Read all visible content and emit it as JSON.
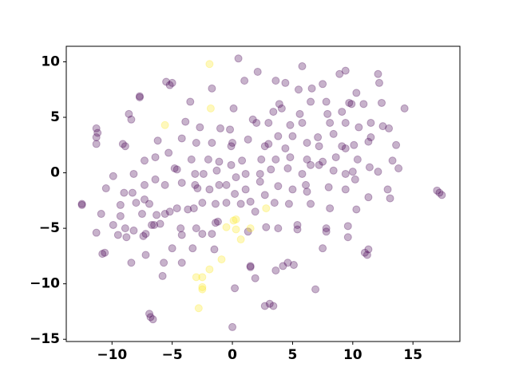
{
  "chart_data": {
    "type": "scatter",
    "xlim": [
      -13.8,
      18.9
    ],
    "ylim": [
      -15.2,
      11.4
    ],
    "xticks": [
      {
        "value": -10,
        "label": "−10"
      },
      {
        "value": -5,
        "label": "−5"
      },
      0,
      5,
      10,
      15
    ],
    "yticks": [
      {
        "value": -15,
        "label": "−15"
      },
      {
        "value": -10,
        "label": "−10"
      },
      {
        "value": -5,
        "label": "−5"
      },
      0,
      5,
      10
    ],
    "grid": false,
    "series": [
      {
        "color": "#440154",
        "x": [
          0.5,
          5.8,
          2.1,
          -1.7,
          1,
          3.6,
          4.4,
          5.5,
          6.6,
          7.5,
          8.9,
          9.4,
          12.1,
          12.2,
          -5.5,
          -5,
          -5.2,
          -7.7,
          -7.7,
          -3.5,
          0.1,
          3.9,
          6.5,
          7.8,
          9.7,
          9.9,
          10.9,
          10.3,
          12.4,
          14.3,
          -11.3,
          -11.2,
          -11.3,
          -11.3,
          -8.6,
          -8.4,
          -3.9,
          -2.7,
          -1,
          -0.2,
          1.7,
          2,
          3,
          3.4,
          4.1,
          5.6,
          4.8,
          5.8,
          7.9,
          8.1,
          9.1,
          9.4,
          10.5,
          11.5,
          12.5,
          13,
          -9.1,
          -8.9,
          -6.2,
          -4.2,
          -3,
          -1.7,
          0,
          -0.1,
          1.3,
          2.7,
          3,
          3.8,
          5,
          4.4,
          6.2,
          7.1,
          7.2,
          8.4,
          9.1,
          9.4,
          10.1,
          11.3,
          11.5,
          13.6,
          -7.3,
          -6.4,
          -5.3,
          -3.4,
          -2,
          -1.1,
          -0.1,
          0.8,
          2.4,
          3.6,
          4.8,
          6.2,
          7.5,
          8.6,
          10.4,
          13.3,
          13.8,
          -9.9,
          -8.2,
          -4.8,
          -4.6,
          -3.1,
          -2.4,
          -1.3,
          0.3,
          1.1,
          2.3,
          3.2,
          4.6,
          5.8,
          6.5,
          7.2,
          8.4,
          9.4,
          10,
          11.4,
          12.1,
          -10.5,
          -9,
          -8.3,
          -7.3,
          -6.4,
          -5.6,
          -4.2,
          -3.1,
          -2.9,
          -1.9,
          -1.1,
          -0.5,
          0.2,
          1.1,
          2.3,
          2.7,
          3.8,
          5,
          6.1,
          6.2,
          8,
          9.4,
          10.2,
          11.3,
          12.9,
          13.1,
          -12.5,
          -12.5,
          17,
          17.2,
          17.4,
          -10.9,
          -9.3,
          -8,
          -7.5,
          -7.3,
          -6.9,
          -6.3,
          -5.6,
          -5.2,
          -4.6,
          -3.7,
          -3.2,
          -2.5,
          -1.4,
          -0.5,
          0.7,
          1.5,
          1.9,
          3.5,
          4.7,
          6.5,
          8.1,
          10.3,
          -9.3,
          -11.3,
          -10.6,
          -10.8,
          -9.9,
          -9.5,
          -8.9,
          -8.2,
          -8.8,
          -7.4,
          -7.2,
          -6.7,
          -6.5,
          -6,
          -5,
          -4.3,
          -4.2,
          -3,
          -2.5,
          -1.7,
          -1.4,
          -1.2,
          1.3,
          2.8,
          3.8,
          5.4,
          5.4,
          7.8,
          7.8,
          9.6,
          9.6,
          -8.4,
          -7.2,
          -5.7,
          -5.8,
          -4.2,
          -3.3,
          -1.5,
          1.5,
          1.5,
          3.6,
          4.2,
          5.1,
          4.6,
          7.5,
          11.2,
          11,
          11.3,
          0.2,
          6.9,
          1.9,
          2.7,
          3.4,
          3.1,
          -6.9,
          -6.8,
          -6.6,
          0
        ],
        "y": [
          10.3,
          9.6,
          9.1,
          7.6,
          8.3,
          8.3,
          8.1,
          7.5,
          7.6,
          8,
          8.9,
          9.2,
          8.9,
          8.1,
          8.2,
          8.1,
          7.9,
          6.9,
          6.8,
          6.4,
          5.8,
          6.2,
          6.4,
          6.4,
          6.3,
          6.2,
          6.2,
          7.2,
          6.3,
          5.8,
          4,
          3.6,
          3.2,
          2.6,
          5.3,
          4.8,
          4.6,
          4.1,
          4,
          3.9,
          4.8,
          4.5,
          4.5,
          5.5,
          5.8,
          5.3,
          4.3,
          4.5,
          5.3,
          4.5,
          5.5,
          4.5,
          4.1,
          4.5,
          4.2,
          4,
          2.6,
          2.4,
          2.9,
          3.1,
          2.7,
          2.7,
          2.7,
          2.4,
          3,
          2.4,
          2.6,
          3.3,
          3.3,
          2.2,
          2.7,
          3.2,
          2.4,
          3.5,
          2.4,
          2.2,
          2.5,
          2.8,
          3.2,
          2.5,
          1.1,
          1.4,
          1.8,
          1.2,
          1.2,
          1,
          0.7,
          1.1,
          1.2,
          1.2,
          1.4,
          1.2,
          1,
          1.4,
          1.2,
          1.1,
          0.4,
          -0.3,
          -0.1,
          0.4,
          0.3,
          -0.1,
          -0.1,
          0.2,
          -0.4,
          -0.1,
          -0.1,
          0.3,
          0.4,
          -0.1,
          0.7,
          0.7,
          0.2,
          -0.1,
          0.1,
          0.5,
          0.1,
          -1.4,
          -1.8,
          -1.8,
          -1.1,
          -0.6,
          -1.1,
          -0.9,
          -1.1,
          -1.4,
          -1.5,
          -1.1,
          -1.1,
          -1.9,
          -1.5,
          -0.8,
          -2,
          -1.2,
          -1.5,
          -1.1,
          -1.7,
          -1.3,
          -1.5,
          -0.6,
          -2.2,
          -1.5,
          -2.3,
          -2.8,
          -2.9,
          -1.6,
          -1.8,
          -2,
          -3.7,
          -2.9,
          -2.7,
          -3.7,
          -2.4,
          -2.8,
          -3.8,
          -3.7,
          -3.5,
          -3.2,
          -3.3,
          -3.2,
          -2.7,
          -2.8,
          -2.7,
          -2.8,
          -2.6,
          -3.5,
          -2.7,
          -2.8,
          -2.8,
          -3.2,
          -3.3,
          -3.9,
          -5.4,
          -7.2,
          -7.3,
          -4.7,
          -5.6,
          -5,
          -5.2,
          -5.8,
          -5.7,
          -5.5,
          -4.7,
          -4.7,
          -4.6,
          -6.8,
          -5,
          -5.6,
          -5,
          -5.5,
          -5.5,
          -4.5,
          -4.4,
          -5.3,
          -4.9,
          -5,
          -4.7,
          -5.1,
          -5.3,
          -5,
          -4.8,
          -5.8,
          -8.1,
          -7.4,
          -8.1,
          -9.3,
          -8.1,
          -6.8,
          -6.9,
          -8.5,
          -8.4,
          -8.8,
          -8.4,
          -8.3,
          -8.1,
          -6.8,
          -7.4,
          -7.2,
          -6.9,
          -10.4,
          -10.5,
          -9.5,
          -12,
          -12,
          -11.8,
          -12.7,
          -13,
          -13.2,
          -13.9
        ]
      },
      {
        "color": "#fde725",
        "x": [
          -1.9,
          -1.8,
          -5.6,
          0.1,
          0.3,
          2.8,
          0.3,
          1.5,
          0.7,
          -0.9,
          -1.9,
          -3,
          -2.5,
          -2.5,
          -2.5,
          -2.8,
          -0.5
        ],
        "y": [
          9.8,
          5.8,
          4.3,
          -4.3,
          -4.2,
          -3.2,
          -5.1,
          -5,
          -6,
          -7.8,
          -8.7,
          -9.4,
          -9.4,
          -10.3,
          -10.5,
          -12.2,
          -4.9
        ]
      }
    ]
  }
}
